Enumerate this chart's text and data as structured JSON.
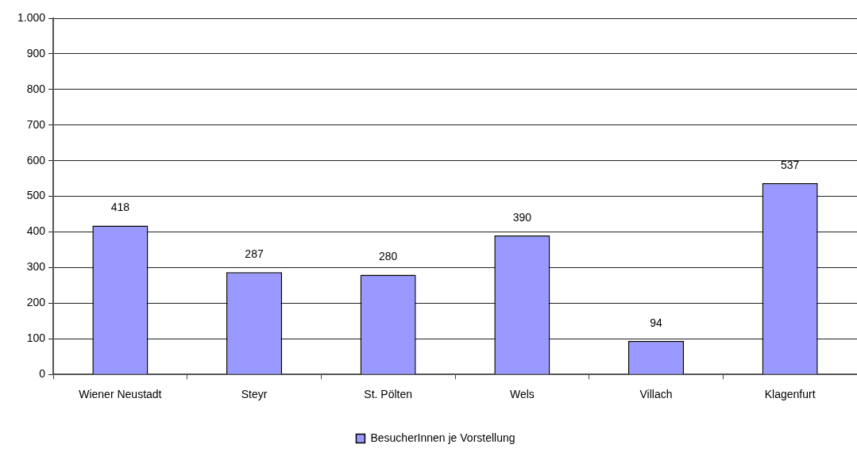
{
  "chart_data": {
    "type": "bar",
    "categories": [
      "Wiener Neustadt",
      "Steyr",
      "St. Pölten",
      "Wels",
      "Villach",
      "Klagenfurt"
    ],
    "series": [
      {
        "name": "BesucherInnen je Vorstellung",
        "color": "#9999ff",
        "values": [
          418,
          287,
          280,
          390,
          94,
          537
        ]
      }
    ],
    "ylim": [
      0,
      1000
    ],
    "yticks": [
      0,
      100,
      200,
      300,
      400,
      500,
      600,
      700,
      800,
      900,
      {
        "value": 1000,
        "label": "1.000"
      }
    ],
    "grid": "y",
    "legend": "bottom",
    "data_labels": true
  }
}
